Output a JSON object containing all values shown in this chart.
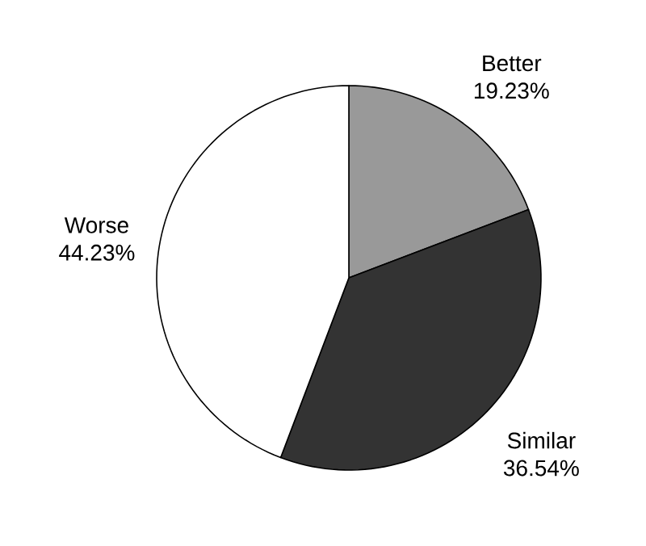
{
  "chart_data": {
    "type": "pie",
    "categories": [
      "Better",
      "Similar",
      "Worse"
    ],
    "values": [
      19.23,
      36.54,
      44.23
    ],
    "value_labels": [
      "19.23%",
      "36.54%",
      "44.23%"
    ],
    "colors": [
      "#999999",
      "#333333",
      "#ffffff"
    ]
  }
}
